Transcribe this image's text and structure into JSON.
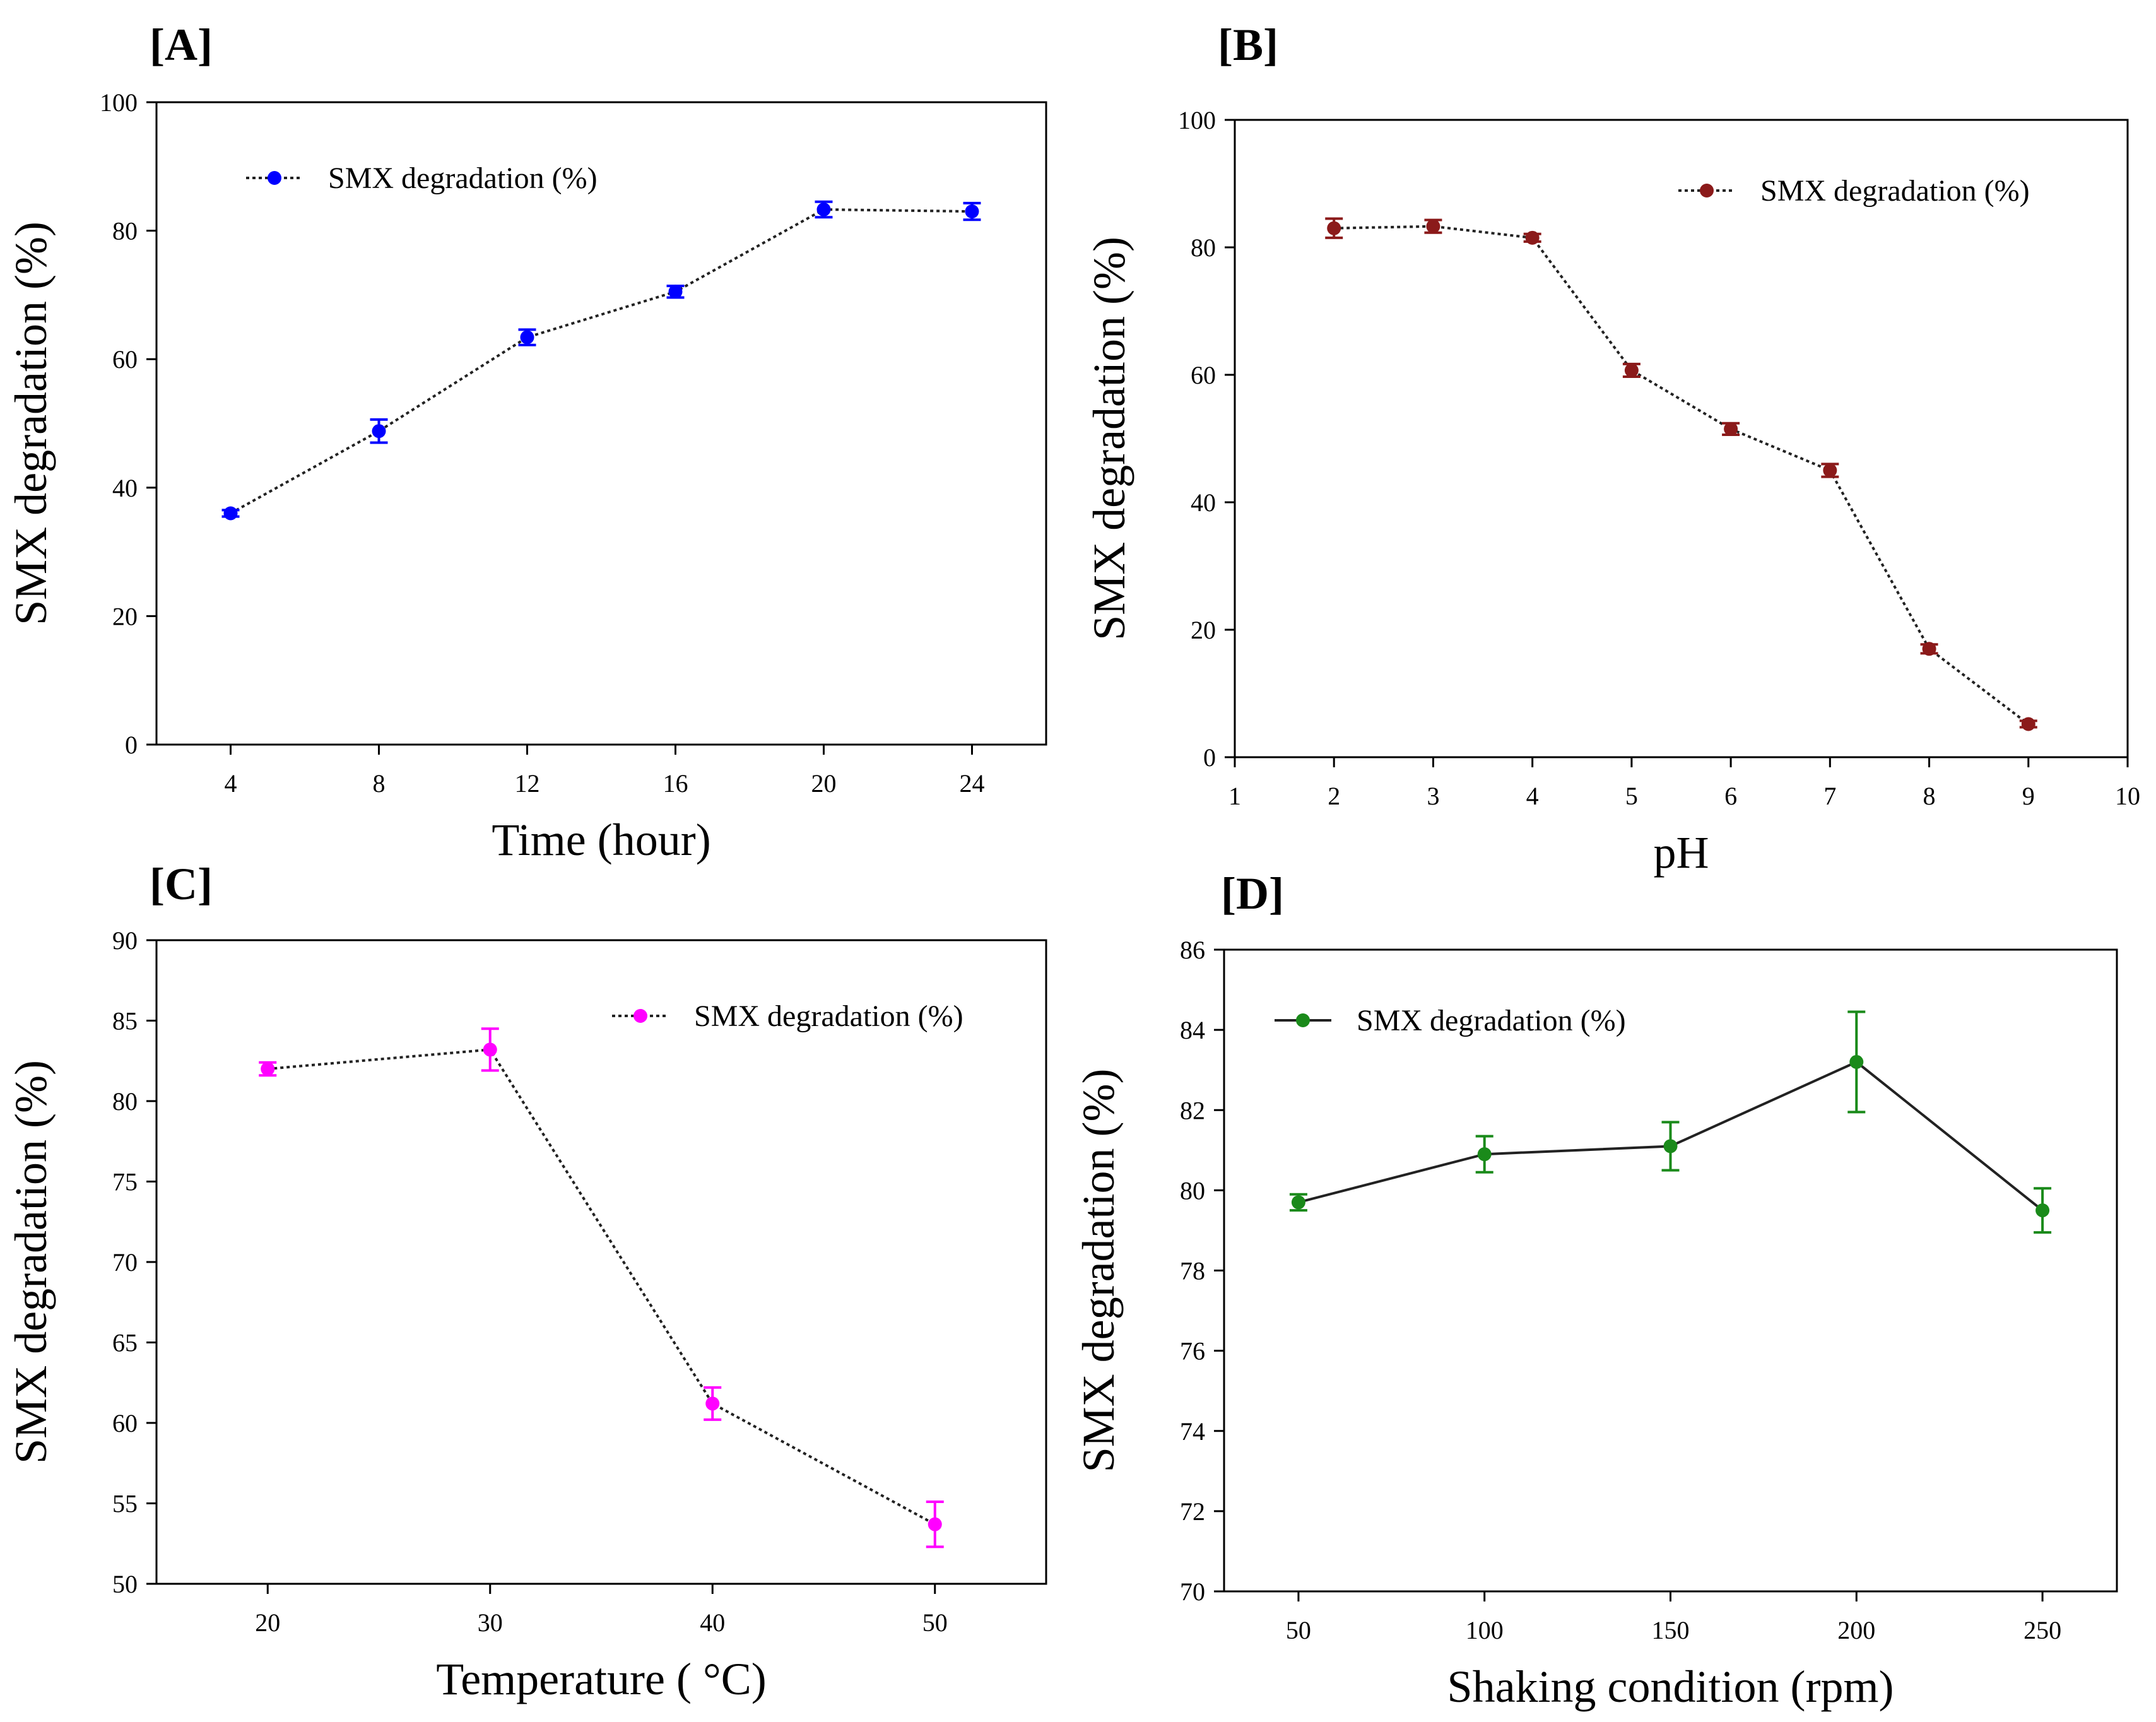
{
  "chart_data": [
    {
      "panel_label": "[A]",
      "type": "line",
      "line_style": "dotted",
      "color": "#0000ff",
      "xlabel": "Time (hour)",
      "ylabel": "SMX degradation (%)",
      "xlim": [
        2,
        26
      ],
      "ylim": [
        0,
        100
      ],
      "xticks": [
        4,
        8,
        12,
        16,
        20,
        24
      ],
      "yticks": [
        0,
        20,
        40,
        60,
        80,
        100
      ],
      "legend": "SMX degradation (%)",
      "legend_position": "top-left",
      "series": [
        {
          "name": "SMX degradation (%)",
          "x": [
            4,
            8,
            12,
            16,
            20,
            24
          ],
          "y": [
            36,
            48.8,
            63.4,
            70.5,
            83.3,
            83
          ],
          "err": [
            0.5,
            1.8,
            1.2,
            0.9,
            1.2,
            1.3
          ]
        }
      ]
    },
    {
      "panel_label": "[B]",
      "type": "line",
      "line_style": "dotted",
      "color": "#8b1a1a",
      "xlabel": "pH",
      "ylabel": "SMX degradation (%)",
      "xlim": [
        1,
        10
      ],
      "ylim": [
        0,
        100
      ],
      "xticks": [
        1,
        2,
        3,
        4,
        5,
        6,
        7,
        8,
        9,
        10
      ],
      "yticks": [
        0,
        20,
        40,
        60,
        80,
        100
      ],
      "legend": "SMX degradation (%)",
      "legend_position": "top-right",
      "series": [
        {
          "name": "SMX degradation (%)",
          "x": [
            2,
            3,
            4,
            5,
            6,
            7,
            8,
            9
          ],
          "y": [
            83,
            83.3,
            81.5,
            60.7,
            51.5,
            45,
            17,
            5.2
          ],
          "err": [
            1.5,
            1.0,
            0.6,
            1.0,
            0.9,
            1.0,
            0.7,
            0.5
          ]
        }
      ]
    },
    {
      "panel_label": "[C]",
      "type": "line",
      "line_style": "dotted",
      "color": "#ff00ff",
      "xlabel": "Temperature ( °C)",
      "ylabel": "SMX degradation (%)",
      "xlim": [
        15,
        55
      ],
      "ylim": [
        50,
        90
      ],
      "xticks": [
        20,
        30,
        40,
        50
      ],
      "yticks": [
        50,
        55,
        60,
        65,
        70,
        75,
        80,
        85,
        90
      ],
      "legend": "SMX degradation (%)",
      "legend_position": "top-right",
      "series": [
        {
          "name": "SMX degradation (%)",
          "x": [
            20,
            30,
            40,
            50
          ],
          "y": [
            82,
            83.2,
            61.2,
            53.7
          ],
          "err": [
            0.4,
            1.3,
            1.0,
            1.4
          ]
        }
      ]
    },
    {
      "panel_label": "[D]",
      "type": "line",
      "line_style": "solid",
      "color": "#1a8a1a",
      "xlabel": "Shaking condition (rpm)",
      "ylabel": "SMX degradation (%)",
      "xlim": [
        30,
        270
      ],
      "ylim": [
        70,
        86
      ],
      "xticks": [
        50,
        100,
        150,
        200,
        250
      ],
      "yticks": [
        70,
        72,
        74,
        76,
        78,
        80,
        82,
        84,
        86
      ],
      "legend": "SMX degradation (%)",
      "legend_position": "top-left",
      "series": [
        {
          "name": "SMX degradation (%)",
          "x": [
            50,
            100,
            150,
            200,
            250
          ],
          "y": [
            79.7,
            80.9,
            81.1,
            83.2,
            79.5
          ],
          "err": [
            0.2,
            0.45,
            0.6,
            1.25,
            0.55
          ]
        }
      ]
    }
  ]
}
